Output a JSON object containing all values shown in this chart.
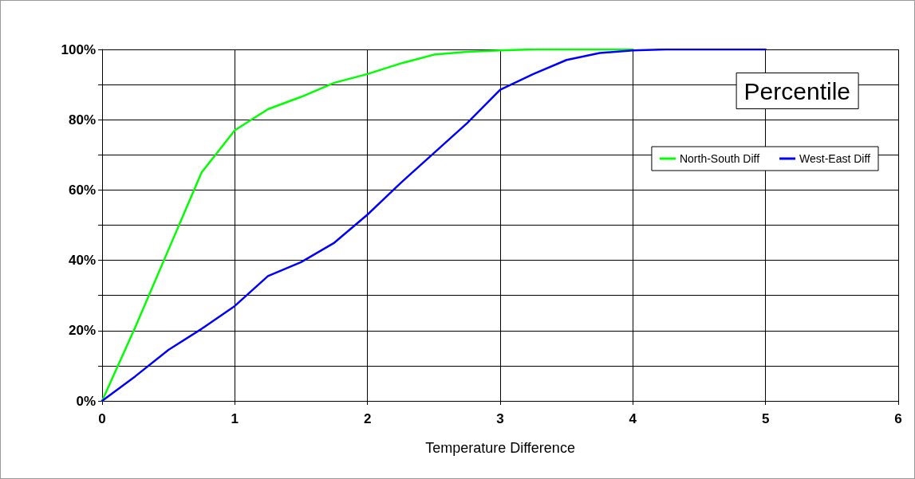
{
  "chart_data": {
    "type": "line",
    "title": "Percentile",
    "xlabel": "Temperature Difference",
    "x": [
      0,
      0.25,
      0.5,
      0.75,
      1,
      1.25,
      1.5,
      1.75,
      2,
      2.25,
      2.5,
      2.75,
      3,
      3.25,
      3.5,
      3.75,
      4,
      4.25,
      4.5,
      4.75,
      5
    ],
    "series": [
      {
        "name": "North-South Diff",
        "color": "#00ff00",
        "values": [
          0,
          21,
          43,
          65,
          77,
          83,
          86.5,
          90.5,
          93,
          96,
          98.5,
          99.3,
          99.7,
          100,
          100,
          100,
          100,
          null,
          null,
          null,
          null
        ]
      },
      {
        "name": "West-East Diff",
        "color": "#0000ff",
        "values": [
          0,
          7,
          14.5,
          20.5,
          27,
          35.5,
          39.5,
          45,
          53,
          62,
          70.5,
          79,
          88.5,
          93,
          97,
          99,
          99.7,
          100,
          100,
          100,
          100
        ]
      }
    ],
    "xlim": [
      0,
      6
    ],
    "xticks": [
      0,
      1,
      2,
      3,
      4,
      5,
      6
    ],
    "ylim": [
      0,
      100
    ],
    "yticks": [
      {
        "value": 0,
        "label": "0%"
      },
      {
        "value": 10,
        "label": null
      },
      {
        "value": 20,
        "label": "20%"
      },
      {
        "value": 30,
        "label": null
      },
      {
        "value": 40,
        "label": "40%"
      },
      {
        "value": 50,
        "label": null
      },
      {
        "value": 60,
        "label": "60%"
      },
      {
        "value": 70,
        "label": null
      },
      {
        "value": 80,
        "label": "80%"
      },
      {
        "value": 90,
        "label": null
      },
      {
        "value": 100,
        "label": "100%"
      }
    ],
    "grid": true,
    "legend": "top right",
    "marker": "none",
    "line_style": "solid"
  }
}
